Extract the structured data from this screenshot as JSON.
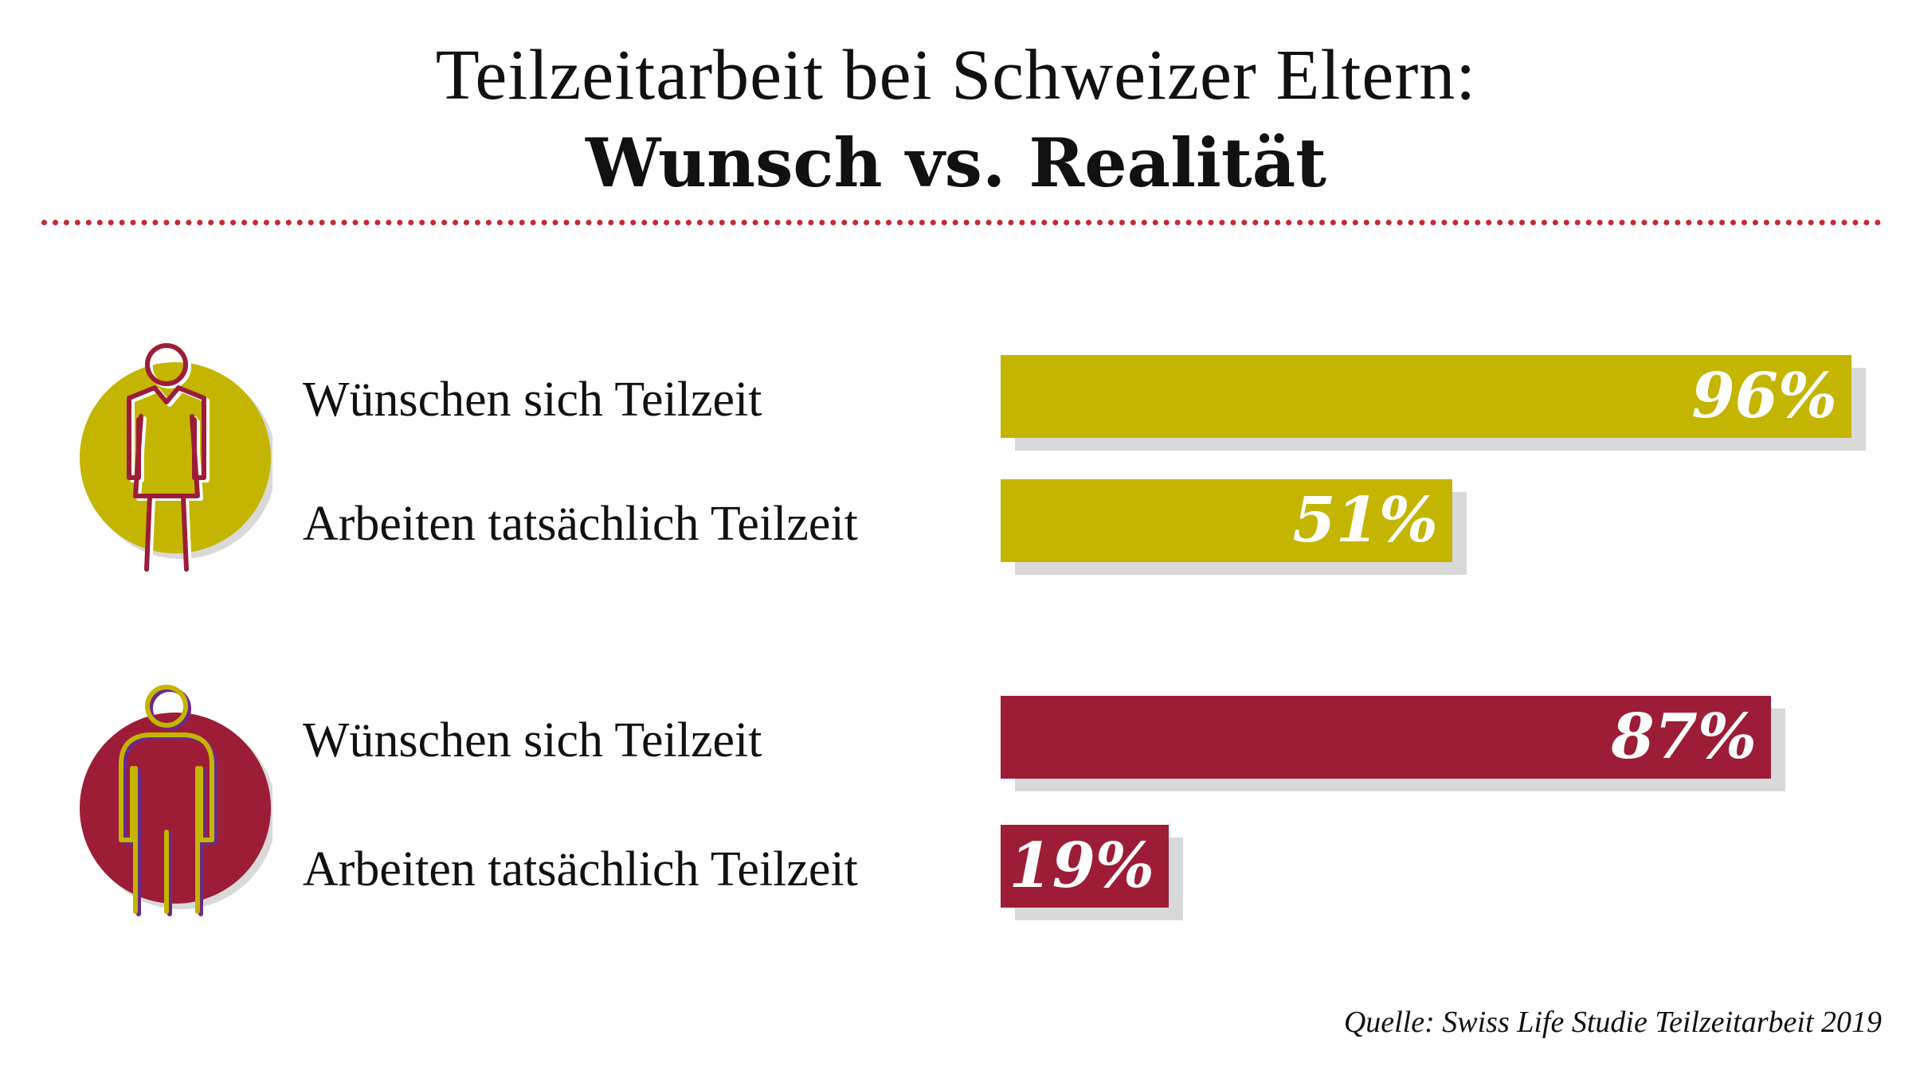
{
  "title": {
    "line1": "Teilzeitarbeit bei Schweizer Eltern:",
    "line2": "Wunsch vs. Realität"
  },
  "colors": {
    "mothers": "#c4b500",
    "fathers": "#9d1d38",
    "divider": "#c8283a",
    "shadow": "#d9d9d9"
  },
  "icons": {
    "mothers": "woman-icon",
    "fathers": "man-icon"
  },
  "chart_data": {
    "type": "bar",
    "orientation": "horizontal",
    "xlim": [
      0,
      100
    ],
    "unit": "%",
    "groups": [
      {
        "icon": "woman-icon",
        "color": "#c4b500",
        "bars": [
          {
            "label": "Wünschen sich Teilzeit",
            "value": 96,
            "value_label": "96%"
          },
          {
            "label": "Arbeiten tatsächlich Teilzeit",
            "value": 51,
            "value_label": "51%"
          }
        ]
      },
      {
        "icon": "man-icon",
        "color": "#9d1d38",
        "bars": [
          {
            "label": "Wünschen sich Teilzeit",
            "value": 87,
            "value_label": "87%"
          },
          {
            "label": "Arbeiten tatsächlich Teilzeit",
            "value": 19,
            "value_label": "19%"
          }
        ]
      }
    ]
  },
  "source": "Quelle: Swiss Life Studie Teilzeitarbeit 2019"
}
